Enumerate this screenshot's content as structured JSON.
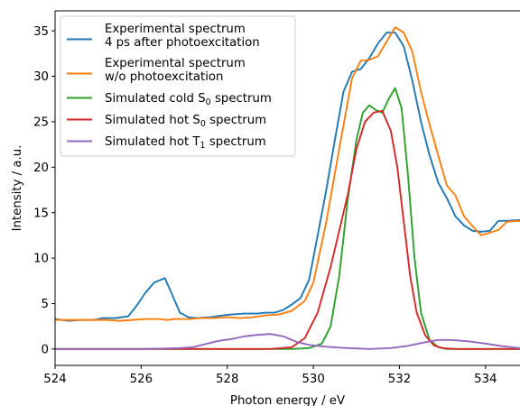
{
  "chart_data": {
    "type": "line",
    "xlabel": "Photon energy / eV",
    "ylabel": "Intensity / a.u.",
    "xlim": [
      524,
      534.8
    ],
    "ylim": [
      -1.8,
      37.2
    ],
    "xticks": [
      524,
      526,
      528,
      530,
      532,
      534
    ],
    "yticks": [
      0,
      5,
      10,
      15,
      20,
      25,
      30,
      35
    ],
    "grid": false,
    "legend_position": "top-left",
    "series": [
      {
        "name_lines": [
          "Experimental spectrum",
          "4 ps after photoexcitation"
        ],
        "color": "#1f77b4",
        "x": [
          524.0,
          524.3,
          524.6,
          524.9,
          525.1,
          525.4,
          525.7,
          525.9,
          526.1,
          526.3,
          526.55,
          526.7,
          526.9,
          527.1,
          527.3,
          527.6,
          527.9,
          528.1,
          528.4,
          528.7,
          528.9,
          529.1,
          529.3,
          529.5,
          529.7,
          529.9,
          530.1,
          530.3,
          530.5,
          530.7,
          530.9,
          531.1,
          531.3,
          531.5,
          531.7,
          531.9,
          532.1,
          532.3,
          532.5,
          532.7,
          532.9,
          533.1,
          533.3,
          533.5,
          533.7,
          533.9,
          534.1,
          534.3,
          534.5,
          534.8
        ],
        "y": [
          3.3,
          3.1,
          3.2,
          3.2,
          3.4,
          3.4,
          3.6,
          4.8,
          6.2,
          7.3,
          7.8,
          6.2,
          4.0,
          3.5,
          3.4,
          3.5,
          3.7,
          3.8,
          3.9,
          3.9,
          4.0,
          4.0,
          4.3,
          4.9,
          5.6,
          7.6,
          12.5,
          17.5,
          23.0,
          28.3,
          30.5,
          30.8,
          32.0,
          33.6,
          34.8,
          34.8,
          33.3,
          29.5,
          25.0,
          21.3,
          18.3,
          16.6,
          14.6,
          13.6,
          13.0,
          12.9,
          13.0,
          14.1,
          14.1,
          14.2
        ]
      },
      {
        "name_lines": [
          "Experimental spectrum",
          "w/o photoexcitation"
        ],
        "color": "#ff7f0e",
        "x": [
          524.0,
          524.3,
          524.6,
          524.9,
          525.2,
          525.5,
          525.8,
          526.1,
          526.4,
          526.6,
          526.8,
          527.1,
          527.4,
          527.7,
          528.0,
          528.3,
          528.6,
          528.9,
          529.2,
          529.5,
          529.8,
          530.0,
          530.3,
          530.6,
          530.9,
          531.1,
          531.3,
          531.5,
          531.7,
          531.9,
          532.1,
          532.3,
          532.5,
          532.7,
          532.9,
          533.1,
          533.3,
          533.5,
          533.7,
          533.9,
          534.1,
          534.3,
          534.5,
          534.8
        ],
        "y": [
          3.2,
          3.2,
          3.2,
          3.2,
          3.2,
          3.1,
          3.2,
          3.3,
          3.3,
          3.2,
          3.3,
          3.3,
          3.4,
          3.4,
          3.5,
          3.4,
          3.5,
          3.7,
          3.8,
          4.2,
          5.3,
          7.3,
          14.0,
          22.0,
          29.8,
          31.7,
          31.8,
          32.2,
          33.8,
          35.4,
          34.8,
          32.7,
          28.3,
          24.7,
          21.3,
          18.0,
          16.9,
          14.6,
          13.5,
          12.5,
          12.8,
          13.1,
          14.0,
          14.1
        ]
      },
      {
        "name": "Simulated cold S",
        "name_sub": "0",
        "name_suffix": " spectrum",
        "color": "#2ca02c",
        "x": [
          524.0,
          529.5,
          529.9,
          530.2,
          530.4,
          530.6,
          530.8,
          531.0,
          531.15,
          531.3,
          531.45,
          531.6,
          531.75,
          531.9,
          532.05,
          532.2,
          532.35,
          532.5,
          532.7,
          532.9,
          533.1,
          534.8
        ],
        "y": [
          0.0,
          0.0,
          0.1,
          0.6,
          2.5,
          8.0,
          16.5,
          23.0,
          26.0,
          26.8,
          26.3,
          26.0,
          27.5,
          28.7,
          26.5,
          19.0,
          10.0,
          4.0,
          1.0,
          0.2,
          0.0,
          0.0
        ]
      },
      {
        "name": "Simulated hot S",
        "name_sub": "0",
        "name_suffix": " spectrum",
        "color": "#d62728",
        "x": [
          524.0,
          529.0,
          529.5,
          529.8,
          530.1,
          530.4,
          530.6,
          530.8,
          531.0,
          531.2,
          531.4,
          531.6,
          531.8,
          531.95,
          532.1,
          532.25,
          532.4,
          532.6,
          532.8,
          533.0,
          533.3,
          534.8
        ],
        "y": [
          0.0,
          0.0,
          0.2,
          1.2,
          4.0,
          9.0,
          13.0,
          17.0,
          22.0,
          25.0,
          26.0,
          26.2,
          24.0,
          20.0,
          14.0,
          8.0,
          4.0,
          1.5,
          0.4,
          0.1,
          0.0,
          0.0
        ]
      },
      {
        "name": "Simulated hot T",
        "name_sub": "1",
        "name_suffix": " spectrum",
        "color": "#9467bd",
        "x": [
          524.0,
          526.0,
          526.5,
          526.9,
          527.2,
          527.5,
          527.8,
          528.1,
          528.4,
          528.7,
          529.0,
          529.3,
          529.6,
          529.9,
          530.3,
          530.8,
          531.3,
          531.8,
          532.2,
          532.6,
          532.9,
          533.2,
          533.6,
          534.0,
          534.4,
          534.8
        ],
        "y": [
          0.0,
          0.0,
          0.05,
          0.1,
          0.2,
          0.55,
          0.9,
          1.1,
          1.4,
          1.55,
          1.65,
          1.4,
          0.8,
          0.45,
          0.25,
          0.1,
          0.0,
          0.1,
          0.35,
          0.75,
          1.0,
          1.0,
          0.85,
          0.6,
          0.3,
          0.1
        ]
      }
    ]
  }
}
